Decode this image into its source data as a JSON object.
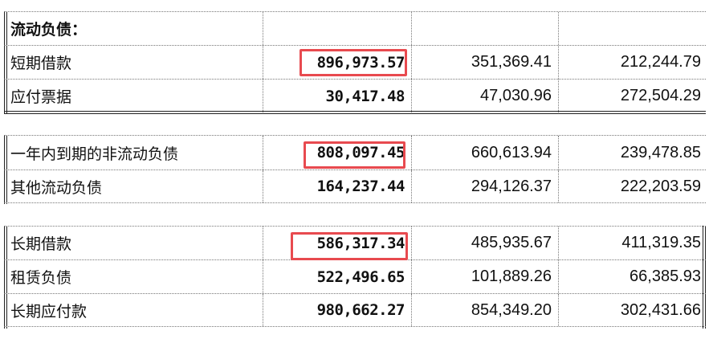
{
  "sections": [
    {
      "rows": [
        {
          "label": "流动负债：",
          "v1": "",
          "v2": "",
          "v3": ""
        },
        {
          "label": "短期借款",
          "v1": "896,973.57",
          "v2": "351,369.41",
          "v3": "212,244.79"
        },
        {
          "label": "应付票据",
          "v1": "30,417.48",
          "v2": "47,030.96",
          "v3": "272,504.29"
        }
      ]
    },
    {
      "rows": [
        {
          "label": "一年内到期的非流动负债",
          "v1": "808,097.45",
          "v2": "660,613.94",
          "v3": "239,478.85"
        },
        {
          "label": "其他流动负债",
          "v1": "164,237.44",
          "v2": "294,126.37",
          "v3": "222,203.59"
        }
      ]
    },
    {
      "rows": [
        {
          "label": "长期借款",
          "v1": "586,317.34",
          "v2": "485,935.67",
          "v3": "411,319.35"
        },
        {
          "label": "租赁负债",
          "v1": "522,496.65",
          "v2": "101,889.26",
          "v3": "66,385.93"
        },
        {
          "label": "长期应付款",
          "v1": "980,662.27",
          "v2": "854,349.20",
          "v3": "302,431.66"
        }
      ]
    }
  ],
  "highlight_color": "#e84a4f"
}
